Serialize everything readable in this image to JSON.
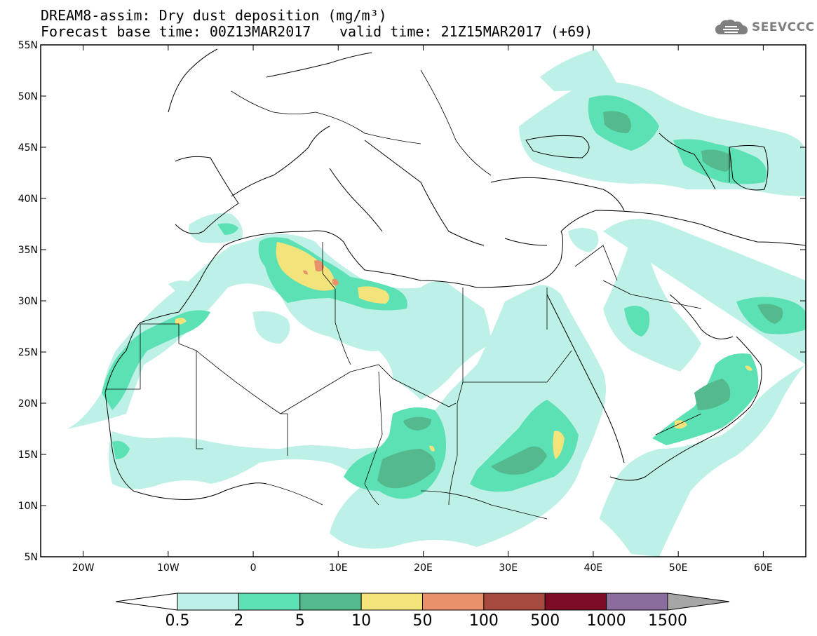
{
  "header": {
    "title_line1": "DREAM8-assim: Dry dust deposition (mg/m³)",
    "title_line2": "Forecast base time: 00Z13MAR2017",
    "valid_time": "valid time: 21Z15MAR2017 (+69)"
  },
  "logo": {
    "text": "SEEVCCC",
    "icon": "cloud-icon"
  },
  "map": {
    "lat_labels": [
      "55N",
      "50N",
      "45N",
      "40N",
      "35N",
      "30N",
      "25N",
      "20N",
      "15N",
      "10N",
      "5N"
    ],
    "lon_labels": [
      "20W",
      "10W",
      "0",
      "10E",
      "20E",
      "30E",
      "40E",
      "50E",
      "60E"
    ],
    "extent": {
      "lon": [
        -25,
        65
      ],
      "lat": [
        5,
        55
      ]
    }
  },
  "colorbar": {
    "colors": [
      "#bdf0e6",
      "#5ce1b5",
      "#55b98e",
      "#f2e37a",
      "#e8916a",
      "#a64a3f",
      "#7d0d27",
      "#8a6d9c"
    ],
    "tick_labels": [
      "0.5",
      "2",
      "5",
      "10",
      "50",
      "100",
      "500",
      "1000",
      "1500"
    ],
    "under_color": "#ffffff",
    "over_color": "#a6a6a6"
  }
}
